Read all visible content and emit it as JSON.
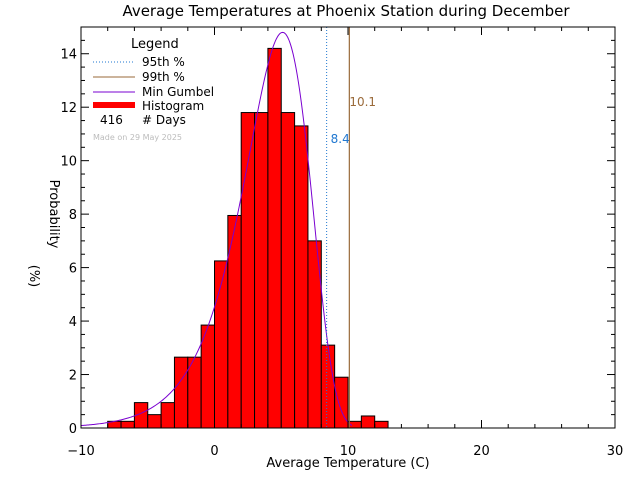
{
  "chart_data": {
    "type": "bar",
    "title": "Average Temperatures at Phoenix Station during December",
    "xlabel": "Average Temperature (C)",
    "ylabel_line1": "Probability",
    "ylabel_line2": "(%)",
    "xlim": [
      -10,
      30
    ],
    "ylim": [
      0,
      15
    ],
    "x_ticks": [
      -10,
      0,
      10,
      20,
      30
    ],
    "y_ticks": [
      0,
      2,
      4,
      6,
      8,
      10,
      12,
      14
    ],
    "bin_width": 1,
    "bins": [
      {
        "x0": -8,
        "value": 0.25
      },
      {
        "x0": -7,
        "value": 0.25
      },
      {
        "x0": -6,
        "value": 0.95
      },
      {
        "x0": -5,
        "value": 0.5
      },
      {
        "x0": -4,
        "value": 0.95
      },
      {
        "x0": -3,
        "value": 2.65
      },
      {
        "x0": -2,
        "value": 2.65
      },
      {
        "x0": -1,
        "value": 3.85
      },
      {
        "x0": 0,
        "value": 6.25
      },
      {
        "x0": 1,
        "value": 7.95
      },
      {
        "x0": 2,
        "value": 11.8
      },
      {
        "x0": 3,
        "value": 11.8
      },
      {
        "x0": 4,
        "value": 14.2
      },
      {
        "x0": 5,
        "value": 11.8
      },
      {
        "x0": 6,
        "value": 11.3
      },
      {
        "x0": 7,
        "value": 7.0
      },
      {
        "x0": 8,
        "value": 3.1
      },
      {
        "x0": 9,
        "value": 1.9
      },
      {
        "x0": 10,
        "value": 0.25
      },
      {
        "x0": 11,
        "value": 0.45
      },
      {
        "x0": 12,
        "value": 0.25
      }
    ],
    "gumbel_curve": {
      "mode": 5.1,
      "scale": 2.48,
      "peak": 14.8,
      "x_range": [
        -10,
        10.3
      ]
    },
    "percentile_95": {
      "value": 8.4,
      "label": "8.4",
      "color": "#1f77d0"
    },
    "percentile_99": {
      "value": 10.1,
      "label": "10.1",
      "color": "#9a6a3a"
    },
    "legend": {
      "title": "Legend",
      "position": "top-left",
      "items": [
        {
          "label": "95th %",
          "style": "dotted",
          "color": "#1f77d0"
        },
        {
          "label": "99th %",
          "style": "solid",
          "color": "#9a6a3a"
        },
        {
          "label": "Min Gumbel",
          "style": "solid",
          "color": "#7a00d0"
        },
        {
          "label": "Histogram",
          "style": "thick",
          "color": "#ff0000"
        }
      ],
      "count_value": "416",
      "count_label": "# Days"
    },
    "note": "Made on 29 May 2025",
    "colors": {
      "histogram_fill": "#ff0000",
      "histogram_edge": "#000000",
      "gumbel": "#7a00d0",
      "p95": "#1f77d0",
      "p99": "#9a6a3a"
    }
  }
}
